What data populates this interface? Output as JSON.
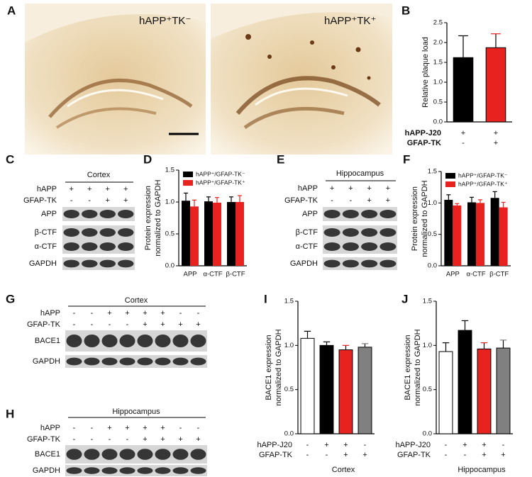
{
  "panel_labels": [
    "A",
    "B",
    "C",
    "D",
    "E",
    "F",
    "G",
    "H",
    "I",
    "J"
  ],
  "micrographs": [
    "hAPP⁺TK⁻",
    "hAPP⁺TK⁺"
  ],
  "blots": [
    {
      "title": "Cortex",
      "rows": [
        {
          "label": "hAPP",
          "signs": [
            "+",
            "+",
            "+",
            "+"
          ]
        },
        {
          "label": "GFAP-TK",
          "signs": [
            "-",
            "-",
            "+",
            "+"
          ]
        }
      ],
      "bands": [
        "APP",
        "β-CTF",
        "α-CTF",
        "GAPDH"
      ]
    },
    {
      "title": "Hippocampus",
      "rows": [
        {
          "label": "hAPP",
          "signs": [
            "+",
            "+",
            "+",
            "+"
          ]
        },
        {
          "label": "GFAP-TK",
          "signs": [
            "-",
            "-",
            "+",
            "+"
          ]
        }
      ],
      "bands": [
        "APP",
        "β-CTF",
        "α-CTF",
        "GAPDH"
      ]
    },
    {
      "title": "Cortex",
      "rows": [
        {
          "label": "hAPP",
          "signs": [
            "-",
            "-",
            "+",
            "+",
            "+",
            "+",
            "-",
            "-"
          ]
        },
        {
          "label": "GFAP-TK",
          "signs": [
            "-",
            "-",
            "-",
            "-",
            "+",
            "+",
            "+",
            "+"
          ]
        }
      ],
      "bands": [
        "BACE1",
        "GAPDH"
      ]
    },
    {
      "title": "Hippocampus",
      "rows": [
        {
          "label": "hAPP",
          "signs": [
            "-",
            "-",
            "+",
            "+",
            "+",
            "+",
            "-",
            "-"
          ]
        },
        {
          "label": "GFAP-TK",
          "signs": [
            "-",
            "-",
            "-",
            "-",
            "+",
            "+",
            "+",
            "+"
          ]
        }
      ],
      "bands": [
        "BACE1",
        "GAPDH"
      ]
    }
  ],
  "chart_data": [
    {
      "type": "bar",
      "y_label": [
        "Relative plaque load"
      ],
      "values": [
        1.62,
        1.87
      ],
      "errors": [
        0.55,
        0.35
      ],
      "colors": [
        "#000000",
        "#e8231f"
      ],
      "ylim": [
        0,
        2.5
      ],
      "yticks": [
        {
          "value": 0,
          "label": "0.0"
        },
        0.5,
        {
          "value": 1,
          "label": "1.0"
        },
        1.5,
        {
          "value": 2,
          "label": "2.0"
        },
        2.5
      ],
      "conditions": [
        {
          "label": "hAPP-J20",
          "signs": [
            "+",
            "+"
          ]
        },
        {
          "label": "GFAP-TK",
          "signs": [
            "-",
            "+"
          ]
        }
      ]
    },
    {
      "type": "grouped_bar",
      "y_label": [
        "Protein expression",
        "normalized to GAPDH"
      ],
      "categories": [
        "APP",
        "α-CTF",
        "β-CTF"
      ],
      "series": [
        {
          "name": "hAPP⁺/GFAP-TK⁻",
          "color": "#000000",
          "values": [
            1.02,
            1.01,
            1.0
          ],
          "errors": [
            0.12,
            0.07,
            0.08
          ]
        },
        {
          "name": "hAPP⁺/GFAP-TK⁺",
          "color": "#e8231f",
          "values": [
            0.93,
            0.99,
            1.0
          ],
          "errors": [
            0.1,
            0.08,
            0.1
          ]
        }
      ],
      "ylim": [
        0,
        1.5
      ],
      "yticks": [
        {
          "value": 0,
          "label": "0.0"
        },
        0.5,
        {
          "value": 1,
          "label": "1.0"
        },
        1.5
      ]
    },
    {
      "type": "grouped_bar",
      "y_label": [
        "Protein expression",
        "normalized to GAPDH"
      ],
      "categories": [
        "APP",
        "α-CTF",
        "β-CTF"
      ],
      "series": [
        {
          "name": "hAPP⁺/GFAP-TK⁻",
          "color": "#000000",
          "values": [
            1.05,
            1.01,
            1.08
          ],
          "errors": [
            0.08,
            0.08,
            0.1
          ]
        },
        {
          "name": "hAPP⁺/GFAP-TK⁺",
          "color": "#e8231f",
          "values": [
            0.96,
            1.0,
            0.93
          ],
          "errors": [
            0.03,
            0.05,
            0.08
          ]
        }
      ],
      "ylim": [
        0,
        1.5
      ],
      "yticks": [
        {
          "value": 0,
          "label": "0.0"
        },
        0.5,
        {
          "value": 1,
          "label": "1.0"
        },
        1.5
      ]
    },
    {
      "type": "bar",
      "y_label": [
        "BACE1 expression",
        "normalized to GAPDH"
      ],
      "x_label": "Cortex",
      "values": [
        1.08,
        1.0,
        0.95,
        0.98
      ],
      "errors": [
        0.08,
        0.04,
        0.05,
        0.04
      ],
      "colors": [
        "#ffffff",
        "#000000",
        "#e8231f",
        "#808080"
      ],
      "ylim": [
        0,
        1.5
      ],
      "yticks": [
        {
          "value": 0,
          "label": "0.0"
        },
        0.5,
        {
          "value": 1,
          "label": "1.0"
        },
        1.5
      ],
      "conditions": [
        {
          "label": "hAPP-J20",
          "signs": [
            "-",
            "+",
            "+",
            "-"
          ]
        },
        {
          "label": "GFAP-TK",
          "signs": [
            "-",
            "-",
            "+",
            "+"
          ]
        }
      ]
    },
    {
      "type": "bar",
      "y_label": [
        "BACE1 expression",
        "normalized to GAPDH"
      ],
      "x_label": "Hippocampus",
      "values": [
        0.93,
        1.17,
        0.96,
        0.97
      ],
      "errors": [
        0.1,
        0.11,
        0.07,
        0.09
      ],
      "colors": [
        "#ffffff",
        "#000000",
        "#e8231f",
        "#808080"
      ],
      "ylim": [
        0,
        1.5
      ],
      "yticks": [
        {
          "value": 0,
          "label": "0.0"
        },
        0.5,
        {
          "value": 1,
          "label": "1.0"
        },
        1.5
      ],
      "conditions": [
        {
          "label": "hAPP-J20",
          "signs": [
            "-",
            "+",
            "+",
            "-"
          ]
        },
        {
          "label": "GFAP-TK",
          "signs": [
            "-",
            "-",
            "+",
            "+"
          ]
        }
      ]
    }
  ]
}
